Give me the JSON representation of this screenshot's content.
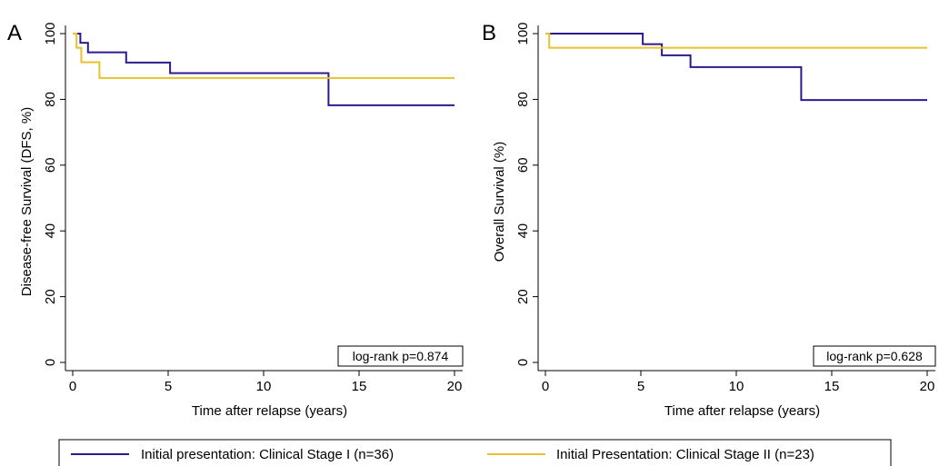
{
  "chart_data": [
    {
      "type": "line",
      "step": true,
      "panel_label": "A",
      "xlabel": "Time after relapse (years)",
      "ylabel": "Disease-free Survival (DFS, %)",
      "xlim": [
        0,
        20
      ],
      "ylim": [
        0,
        100
      ],
      "xticks": [
        0,
        5,
        10,
        15,
        20
      ],
      "yticks": [
        0,
        20,
        40,
        60,
        80,
        100
      ],
      "grid": false,
      "annotation": "log-rank p=0.874",
      "series": [
        {
          "name": "Initial presentation: Clinical Stage I (n=36)",
          "color": "#2e1a8c",
          "x": [
            0,
            0.4,
            0.8,
            2.8,
            5.1,
            13.4,
            20
          ],
          "y": [
            100,
            97.2,
            94.3,
            91.2,
            88.0,
            78.2,
            78.2
          ]
        },
        {
          "name": "Initial Presentation: Clinical Stage II (n=23)",
          "color": "#e8c22c",
          "x": [
            0,
            0.2,
            0.45,
            1.4,
            20
          ],
          "y": [
            100,
            95.7,
            91.3,
            86.5,
            86.5
          ]
        }
      ]
    },
    {
      "type": "line",
      "step": true,
      "panel_label": "B",
      "xlabel": "Time after relapse (years)",
      "ylabel": "Overall Survival (%)",
      "xlim": [
        0,
        20
      ],
      "ylim": [
        0,
        100
      ],
      "xticks": [
        0,
        5,
        10,
        15,
        20
      ],
      "yticks": [
        0,
        20,
        40,
        60,
        80,
        100
      ],
      "grid": false,
      "annotation": "log-rank p=0.628",
      "series": [
        {
          "name": "Initial presentation: Clinical Stage I (n=36)",
          "color": "#2e1a8c",
          "x": [
            0,
            5.1,
            6.1,
            7.6,
            13.4,
            20
          ],
          "y": [
            100,
            96.8,
            93.4,
            89.8,
            79.8,
            79.8
          ]
        },
        {
          "name": "Initial Presentation: Clinical Stage II (n=23)",
          "color": "#e8c22c",
          "x": [
            0,
            0.2,
            20
          ],
          "y": [
            100,
            95.7,
            95.7
          ]
        }
      ]
    }
  ],
  "legend": {
    "position": "bottom",
    "items": [
      {
        "label": "Initial presentation: Clinical Stage I (n=36)",
        "color": "#2e1a8c"
      },
      {
        "label": "Initial Presentation: Clinical Stage II (n=23)",
        "color": "#e8c22c"
      }
    ]
  }
}
